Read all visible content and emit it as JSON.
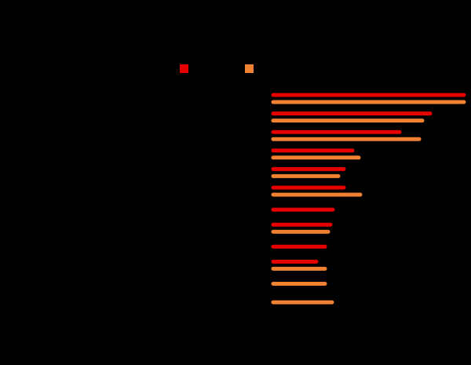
{
  "chart_data": {
    "type": "bar",
    "orientation": "horizontal",
    "categories": [
      null,
      null,
      null,
      null,
      null,
      null,
      null,
      null,
      null,
      null,
      null,
      null
    ],
    "series": [
      {
        "color": "#e60000",
        "values": [
          243,
          200,
          161,
          101,
          90,
          90,
          76,
          73,
          66,
          55,
          null,
          null
        ]
      },
      {
        "color": "#f08232",
        "values": [
          243,
          190,
          186,
          109,
          83,
          111,
          null,
          70,
          null,
          66,
          66,
          75
        ]
      }
    ],
    "xlim": [
      0,
      250
    ]
  }
}
